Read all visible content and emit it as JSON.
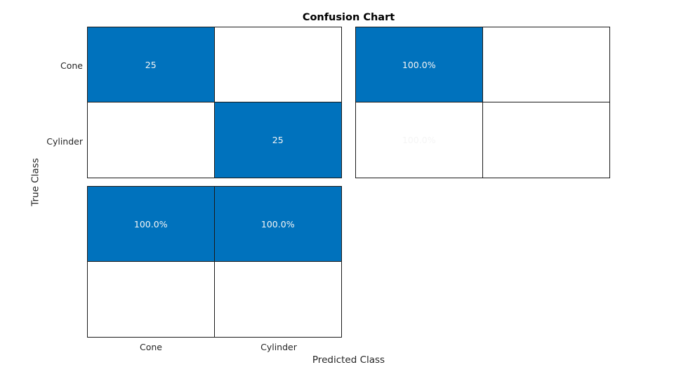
{
  "chart_data": {
    "type": "heatmap",
    "subtype": "confusion_matrix",
    "title": "Confusion Chart",
    "xlabel": "Predicted Class",
    "ylabel": "True Class",
    "classes": [
      "Cone",
      "Cylinder"
    ],
    "layout": {
      "row_summary_position": "right",
      "column_summary_position": "bottom",
      "grid": "cell borders",
      "legend": "none"
    },
    "matrix": {
      "rows": [
        {
          "true_class": "Cone",
          "cells": [
            {
              "predicted_class": "Cone",
              "value": 25,
              "label": "25",
              "filled": true
            },
            {
              "predicted_class": "Cylinder",
              "label": "",
              "filled": false
            }
          ]
        },
        {
          "true_class": "Cylinder",
          "cells": [
            {
              "predicted_class": "Cone",
              "label": "",
              "filled": false
            },
            {
              "predicted_class": "Cylinder",
              "value": 25,
              "label": "25",
              "filled": true
            }
          ]
        }
      ]
    },
    "row_summary": {
      "rows": [
        {
          "true_class": "Cone",
          "cells": [
            {
              "value": 100.0,
              "label": "100.0%",
              "filled": true
            },
            {
              "label": "",
              "filled": false
            }
          ]
        },
        {
          "true_class": "Cylinder",
          "cells": [
            {
              "value": 100.0,
              "label": "100.0%",
              "filled": true
            },
            {
              "label": "",
              "filled": false
            }
          ]
        }
      ]
    },
    "column_summary": {
      "rows": [
        {
          "cells": [
            {
              "predicted_class": "Cone",
              "value": 100.0,
              "label": "100.0%",
              "filled": true
            },
            {
              "predicted_class": "Cylinder",
              "value": 100.0,
              "label": "100.0%",
              "filled": true
            }
          ]
        },
        {
          "cells": [
            {
              "label": "",
              "filled": false
            },
            {
              "label": "",
              "filled": false
            }
          ]
        }
      ]
    },
    "colors": {
      "filled_cell": "#0072BD",
      "empty_cell": "#FFFFFF",
      "cell_border": "#1A1A1A",
      "cell_text": "#F5F5F5",
      "tick_text": "#262626",
      "title_text": "#000000"
    }
  }
}
